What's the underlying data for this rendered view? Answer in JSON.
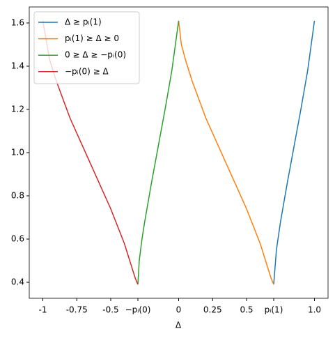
{
  "chart_data": {
    "type": "line",
    "x_label": "Δ",
    "xlim": [
      -1.1,
      1.1
    ],
    "ylim": [
      0.326,
      1.674
    ],
    "xticks": [
      -1,
      -0.75,
      -0.5,
      {
        "value": -0.3,
        "label": "−pᵢ(0)"
      },
      0,
      0.25,
      0.5,
      {
        "value": 0.7,
        "label": "pᵢ(1)"
      },
      {
        "value": 1,
        "label": "1.0"
      }
    ],
    "yticks": [
      0.4,
      0.6,
      0.8,
      {
        "value": 1,
        "label": "1.0"
      },
      1.2,
      1.4,
      1.6
    ],
    "legend": "upper left",
    "series": [
      {
        "name": "Δ ≥ pᵢ(1)",
        "color": "#1f77b4",
        "x": [
          0.7,
          0.72,
          0.75,
          0.8,
          0.85,
          0.9,
          0.95,
          1.0
        ],
        "values": [
          0.39,
          0.55,
          0.68,
          0.86,
          1.03,
          1.2,
          1.38,
          1.61
        ]
      },
      {
        "name": "pᵢ(1) ≥ Δ ≥ 0",
        "color": "#ff7f0e",
        "x": [
          0,
          0.02,
          0.05,
          0.1,
          0.2,
          0.3,
          0.4,
          0.5,
          0.6,
          0.65,
          0.68,
          0.7
        ],
        "values": [
          1.61,
          1.5,
          1.43,
          1.33,
          1.16,
          1.02,
          0.88,
          0.74,
          0.58,
          0.48,
          0.42,
          0.39
        ]
      },
      {
        "name": "0 ≥ Δ ≥ −pᵢ(0)",
        "color": "#2ca02c",
        "x": [
          -0.3,
          -0.29,
          -0.27,
          -0.25,
          -0.2,
          -0.15,
          -0.1,
          -0.05,
          0
        ],
        "values": [
          0.39,
          0.5,
          0.6,
          0.68,
          0.86,
          1.03,
          1.2,
          1.38,
          1.61
        ]
      },
      {
        "name": "−pᵢ(0) ≥ Δ",
        "color": "#d62728",
        "x": [
          -1.0,
          -0.95,
          -0.9,
          -0.8,
          -0.7,
          -0.6,
          -0.5,
          -0.4,
          -0.35,
          -0.32,
          -0.3
        ],
        "values": [
          1.61,
          1.43,
          1.33,
          1.16,
          1.02,
          0.88,
          0.74,
          0.58,
          0.48,
          0.42,
          0.39
        ]
      }
    ]
  }
}
